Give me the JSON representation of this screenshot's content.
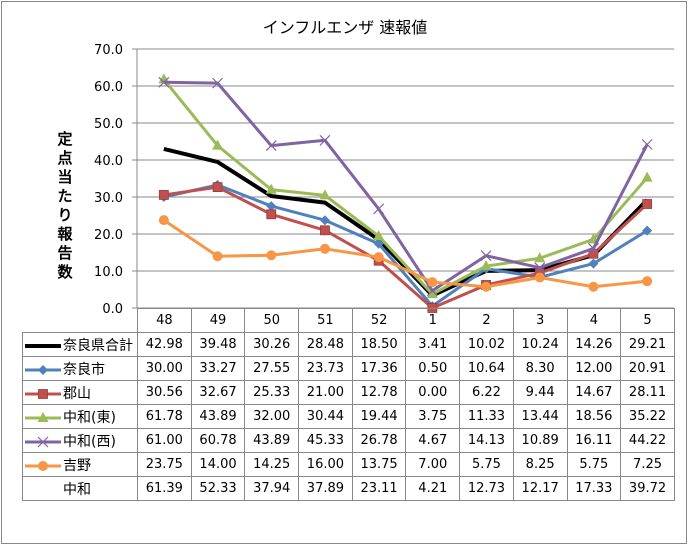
{
  "chart_data": {
    "type": "line",
    "title": "インフルエンザ 速報値",
    "ylabel": "定点当たり報告数",
    "xlabel": "",
    "ylim": [
      0,
      70
    ],
    "yticks": [
      "0.0",
      "10.0",
      "20.0",
      "30.0",
      "40.0",
      "50.0",
      "60.0",
      "70.0"
    ],
    "grid": true,
    "legend": "data-table",
    "categories": [
      "48",
      "49",
      "50",
      "51",
      "52",
      "1",
      "2",
      "3",
      "4",
      "5"
    ],
    "series": [
      {
        "name": "奈良県合計",
        "color": "#000000",
        "marker": "none",
        "values": [
          42.98,
          39.48,
          30.26,
          28.48,
          18.5,
          3.41,
          10.02,
          10.24,
          14.26,
          29.21
        ],
        "display": [
          "42.98",
          "39.48",
          "30.26",
          "28.48",
          "18.50",
          "3.41",
          "10.02",
          "10.24",
          "14.26",
          "29.21"
        ]
      },
      {
        "name": "奈良市",
        "color": "#4F81BD",
        "marker": "diamond",
        "values": [
          30.0,
          33.27,
          27.55,
          23.73,
          17.36,
          0.5,
          10.64,
          8.3,
          12.0,
          20.91
        ],
        "display": [
          "30.00",
          "33.27",
          "27.55",
          "23.73",
          "17.36",
          "0.50",
          "10.64",
          "8.30",
          "12.00",
          "20.91"
        ]
      },
      {
        "name": "郡山",
        "color": "#C0504D",
        "marker": "square",
        "values": [
          30.56,
          32.67,
          25.33,
          21.0,
          12.78,
          0.0,
          6.22,
          9.44,
          14.67,
          28.11
        ],
        "display": [
          "30.56",
          "32.67",
          "25.33",
          "21.00",
          "12.78",
          "0.00",
          "6.22",
          "9.44",
          "14.67",
          "28.11"
        ]
      },
      {
        "name": "中和(東)",
        "color": "#9BBB59",
        "marker": "triangle",
        "values": [
          61.78,
          43.89,
          32.0,
          30.44,
          19.44,
          3.75,
          11.33,
          13.44,
          18.56,
          35.22
        ],
        "display": [
          "61.78",
          "43.89",
          "32.00",
          "30.44",
          "19.44",
          "3.75",
          "11.33",
          "13.44",
          "18.56",
          "35.22"
        ]
      },
      {
        "name": "中和(西)",
        "color": "#8064A2",
        "marker": "x",
        "values": [
          61.0,
          60.78,
          43.89,
          45.33,
          26.78,
          4.67,
          14.13,
          10.89,
          16.11,
          44.22
        ],
        "display": [
          "61.00",
          "60.78",
          "43.89",
          "45.33",
          "26.78",
          "4.67",
          "14.13",
          "10.89",
          "16.11",
          "44.22"
        ]
      },
      {
        "name": "吉野",
        "color": "#F79646",
        "marker": "circle",
        "values": [
          23.75,
          14.0,
          14.25,
          16.0,
          13.75,
          7.0,
          5.75,
          8.25,
          5.75,
          7.25
        ],
        "display": [
          "23.75",
          "14.00",
          "14.25",
          "16.00",
          "13.75",
          "7.00",
          "5.75",
          "8.25",
          "5.75",
          "7.25"
        ]
      },
      {
        "name": "中和",
        "color": null,
        "marker": "none",
        "hidden_line": true,
        "values": [
          61.39,
          52.33,
          37.94,
          37.89,
          23.11,
          4.21,
          12.73,
          12.17,
          17.33,
          39.72
        ],
        "display": [
          "61.39",
          "52.33",
          "37.94",
          "37.89",
          "23.11",
          "4.21",
          "12.73",
          "12.17",
          "17.33",
          "39.72"
        ]
      }
    ]
  }
}
